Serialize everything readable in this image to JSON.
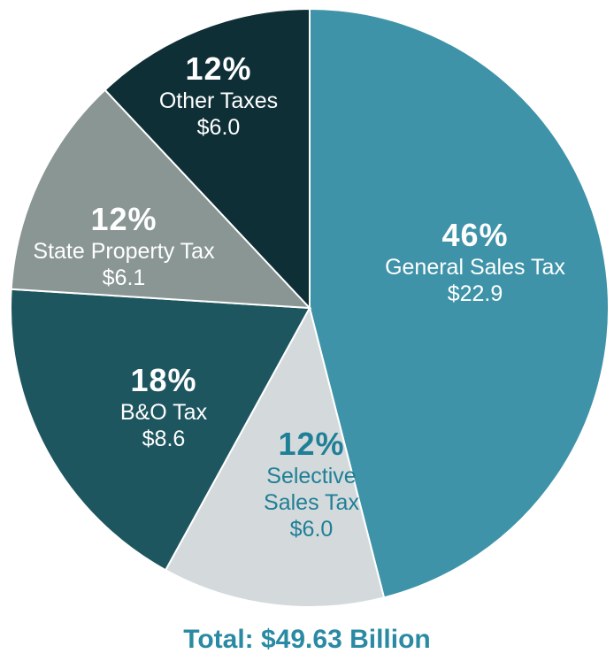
{
  "chart_data": {
    "type": "pie",
    "title": "Total: $49.63 Billion",
    "categories": [
      "General Sales Tax",
      "Selective Sales Tax",
      "B&O Tax",
      "State Property Tax",
      "Other Taxes"
    ],
    "values": [
      46,
      12,
      18,
      12,
      12
    ],
    "value_labels": [
      "46%",
      "12%",
      "18%",
      "12%",
      "12%"
    ],
    "amounts": [
      22.9,
      6.0,
      8.6,
      6.1,
      6.0
    ],
    "amount_labels": [
      "$22.9",
      "$6.0",
      "$8.6",
      "$6.1",
      "$6.0"
    ],
    "colors": [
      "#3e93a8",
      "#d4dadc",
      "#1e5660",
      "#8a9694",
      "#0f2f37"
    ],
    "text_colors": [
      "#ffffff",
      "#1f7f96",
      "#ffffff",
      "#ffffff",
      "#ffffff"
    ]
  }
}
